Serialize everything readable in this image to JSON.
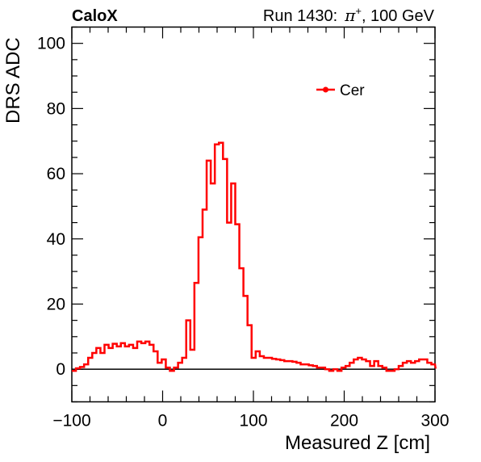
{
  "header": {
    "left": "CaloX",
    "right_prefix": "Run 1430:",
    "particle": "π",
    "particle_sup": "+",
    "energy": ", 100 GeV"
  },
  "chart_data": {
    "type": "line",
    "xlabel": "Measured Z [cm]",
    "ylabel": "DRS ADC",
    "xlim": [
      -100,
      300
    ],
    "ylim": [
      -10,
      105
    ],
    "xticks": [
      -100,
      0,
      100,
      200,
      300
    ],
    "xtick_labels": [
      "−100",
      "0",
      "100",
      "200",
      "300"
    ],
    "yticks": [
      0,
      20,
      40,
      60,
      80,
      100
    ],
    "ytick_labels": [
      "0",
      "20",
      "40",
      "60",
      "80",
      "100"
    ],
    "grid": false,
    "legend_position": "top-right",
    "series": [
      {
        "name": "Cer",
        "color": "#ff0000",
        "bin_edges": [
          -100,
          0
        ],
        "bin_width": 4.5,
        "values": [
          -0.5,
          0.3,
          0.7,
          1.5,
          3.5,
          5,
          6.5,
          5,
          7.5,
          6.5,
          7.8,
          7,
          8,
          7,
          7.5,
          6.5,
          8.5,
          8,
          8.5,
          7.5,
          5.5,
          2,
          3,
          0.5,
          -0.5,
          0.5,
          2,
          3.5,
          15,
          6,
          26.5,
          40.5,
          49,
          64,
          57,
          69,
          69.5,
          64.5,
          45,
          57,
          44.5,
          31,
          22.5,
          13.5,
          3.5,
          5.5,
          4,
          3.5,
          3.5,
          3.2,
          3,
          2.8,
          2.5,
          2.5,
          2.3,
          2,
          1.5,
          1.5,
          1.2,
          1,
          0.5,
          0.5,
          0,
          -0.5,
          0,
          -0.5,
          0.5,
          1,
          2,
          3,
          3.5,
          3,
          2.5,
          1,
          2.5,
          1,
          0.5,
          -0.5,
          -0.5,
          0,
          1,
          2,
          2.5,
          2,
          2.5,
          3,
          3,
          2,
          1.5,
          0.5
        ]
      }
    ]
  }
}
